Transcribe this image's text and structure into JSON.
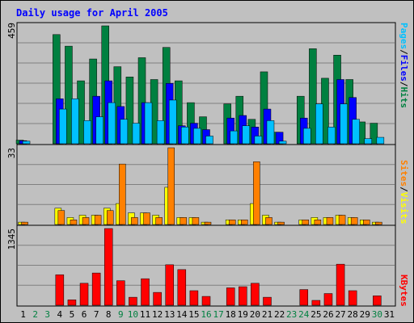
{
  "chart_data": {
    "type": "bar",
    "title": "Daily usage for April 2005",
    "categories": [
      "1",
      "2",
      "3",
      "4",
      "5",
      "6",
      "7",
      "8",
      "9",
      "10",
      "11",
      "12",
      "13",
      "14",
      "15",
      "16",
      "17",
      "18",
      "19",
      "20",
      "21",
      "22",
      "23",
      "24",
      "25",
      "26",
      "27",
      "28",
      "29",
      "30",
      "31"
    ],
    "weekend_days": [
      2,
      3,
      9,
      10,
      16,
      17,
      23,
      24,
      30
    ],
    "panels": {
      "top": {
        "label_parts": [
          "Pages",
          "/",
          "Files",
          "/",
          "Hits"
        ],
        "label_colors": [
          "#00c0ff",
          "#000000",
          "#0000ff",
          "#000000",
          "#008040"
        ],
        "ymax_label": "459",
        "ylim": [
          0,
          459
        ],
        "series": [
          {
            "name": "Hits",
            "color": "#008040",
            "values": [
              14,
              0,
              0,
              425,
              380,
              245,
              330,
              459,
              300,
              260,
              335,
              250,
              375,
              245,
              160,
              105,
              0,
              155,
              185,
              95,
              280,
              45,
              0,
              185,
              370,
              255,
              345,
              250,
              85,
              80,
              0
            ]
          },
          {
            "name": "Files",
            "color": "#0000ff",
            "values": [
              12,
              0,
              0,
              175,
              0,
              0,
              185,
              245,
              145,
              0,
              160,
              0,
              235,
              70,
              80,
              55,
              0,
              100,
              110,
              65,
              135,
              45,
              0,
              100,
              0,
              0,
              250,
              180,
              0,
              0,
              0
            ]
          },
          {
            "name": "Pages",
            "color": "#00c0ff",
            "values": [
              10,
              0,
              0,
              135,
              175,
              90,
              105,
              160,
              95,
              80,
              160,
              90,
              170,
              65,
              60,
              30,
              0,
              50,
              70,
              30,
              90,
              10,
              0,
              60,
              155,
              65,
              155,
              95,
              20,
              25,
              0
            ]
          }
        ]
      },
      "middle": {
        "label_parts": [
          "Sites",
          "/",
          "Visits"
        ],
        "label_colors": [
          "#ff8000",
          "#000000",
          "#ffff00"
        ],
        "ymax_label": "33",
        "ylim": [
          0,
          33
        ],
        "series": [
          {
            "name": "Visits",
            "color": "#ffff00",
            "values": [
              1,
              0,
              0,
              7,
              3,
              4,
              4,
              7,
              9,
              5,
              5,
              4,
              16,
              3,
              3,
              1,
              0,
              2,
              2,
              9,
              4,
              1,
              0,
              2,
              3,
              3,
              4,
              3,
              2,
              1,
              0
            ]
          },
          {
            "name": "Sites",
            "color": "#ff8000",
            "values": [
              1,
              0,
              0,
              6,
              2,
              3,
              4,
              6,
              26,
              3,
              5,
              3,
              33,
              3,
              3,
              1,
              0,
              2,
              2,
              27,
              3,
              1,
              0,
              2,
              2,
              3,
              4,
              3,
              2,
              1,
              0
            ]
          }
        ]
      },
      "bottom": {
        "label_parts": [
          "KBytes"
        ],
        "label_colors": [
          "#ff0000"
        ],
        "ymax_label": "1345",
        "ylim": [
          0,
          1345
        ],
        "series": [
          {
            "name": "KBytes",
            "color": "#ff0000",
            "values": [
              0,
              0,
              0,
              535,
              95,
              385,
              565,
              1345,
              430,
              140,
              465,
              225,
              710,
              625,
              255,
              155,
              0,
              305,
              325,
              385,
              140,
              0,
              0,
              275,
              85,
              205,
              720,
              255,
              0,
              165,
              0
            ]
          }
        ]
      }
    }
  }
}
